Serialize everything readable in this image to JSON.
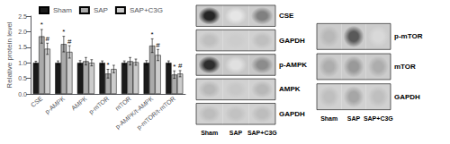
{
  "chart_data": [
    {
      "type": "bar",
      "categories": [
        "CSE",
        "p-AMPK",
        "AMPK",
        "p-mTOR",
        "mTOR",
        "p-AMPK/t-AMPK",
        "p-mTOR/t-mTOR"
      ],
      "ylabel": "Relative protein level",
      "ylim": [
        0,
        2.5
      ],
      "yticks": [
        {
          "value": 0.0,
          "label": "0.0"
        },
        0.5,
        {
          "value": 1.0,
          "label": "1.0"
        },
        1.5,
        {
          "value": 2.0,
          "label": "2.0"
        },
        2.5
      ],
      "grid": false,
      "legend": "upper left",
      "series": [
        {
          "name": "Sham",
          "color": "#1a1a1a",
          "values": [
            1.0,
            1.0,
            1.0,
            1.0,
            1.0,
            1.0,
            1.0
          ],
          "errors": [
            0.05,
            0.06,
            0.07,
            0.06,
            0.06,
            0.07,
            0.06
          ]
        },
        {
          "name": "SAP",
          "color": "#aaaaaa",
          "values": [
            1.85,
            1.6,
            1.05,
            0.65,
            1.05,
            1.55,
            0.62
          ],
          "errors": [
            0.22,
            0.25,
            0.12,
            0.14,
            0.12,
            0.22,
            0.12
          ],
          "annotations": [
            "*",
            "*",
            null,
            "*",
            null,
            "*",
            "*"
          ]
        },
        {
          "name": "SAP+C3G",
          "color": "#cccccc",
          "values": [
            1.45,
            1.35,
            1.0,
            0.8,
            1.02,
            1.25,
            0.65
          ],
          "errors": [
            0.18,
            0.2,
            0.1,
            0.12,
            0.1,
            0.18,
            0.1
          ],
          "annotations": [
            "#",
            "#",
            null,
            null,
            null,
            "#",
            "#"
          ]
        }
      ]
    },
    {
      "type": "heatmap",
      "categories": [
        "Sham",
        "SAP",
        "SAP+C3G"
      ],
      "rows": [
        "CSE",
        "GAPDH",
        "p-AMPK",
        "AMPK",
        "GAPDH"
      ],
      "cells": [
        [
          0.15,
          0.9,
          0.5
        ],
        [
          0.75,
          0.8,
          0.75
        ],
        [
          0.18,
          0.88,
          0.55
        ],
        [
          0.72,
          0.78,
          0.72
        ],
        [
          0.74,
          0.76,
          0.74
        ]
      ],
      "backgrounds": [
        0.8,
        0.82,
        0.78,
        0.82,
        0.82
      ],
      "zlim": [
        0,
        1
      ]
    },
    {
      "type": "heatmap",
      "categories": [
        "Sham",
        "SAP",
        "SAP+C3G"
      ],
      "rows": [
        "p-mTOR",
        "mTOR",
        "GAPDH"
      ],
      "cells": [
        [
          0.72,
          0.35,
          0.85
        ],
        [
          0.68,
          0.6,
          0.68
        ],
        [
          0.75,
          0.65,
          0.75
        ]
      ],
      "backgrounds": [
        0.8,
        0.8,
        0.82
      ],
      "zlim": [
        0,
        1
      ]
    }
  ]
}
